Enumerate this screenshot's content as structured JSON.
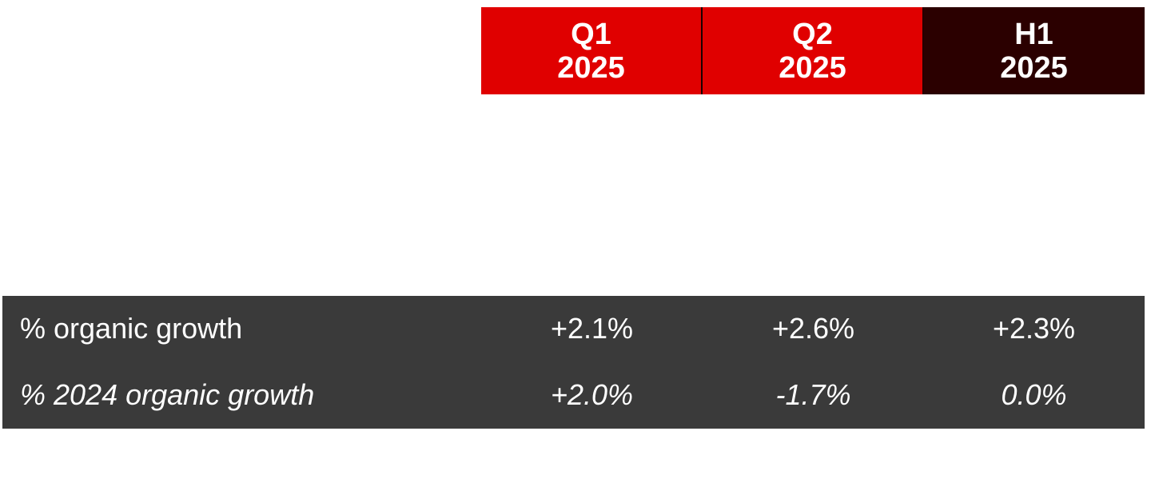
{
  "columns": [
    {
      "line1": "Q1",
      "line2": "2025",
      "color": "#e00000"
    },
    {
      "line1": "Q2",
      "line2": "2025",
      "color": "#e00000"
    },
    {
      "line1": "H1",
      "line2": "2025",
      "color": "#2b0000"
    }
  ],
  "rows": [
    {
      "label": "% organic growth",
      "values": [
        "+2.1%",
        "+2.6%",
        "+2.3%"
      ]
    },
    {
      "label": "% 2024 organic growth",
      "values": [
        "+2.0%",
        "-1.7%",
        "0.0%"
      ]
    }
  ],
  "colors": {
    "accent_red": "#e00000",
    "dark_red": "#2b0000",
    "band_gray": "#3a3a3a",
    "text_white": "#ffffff"
  }
}
